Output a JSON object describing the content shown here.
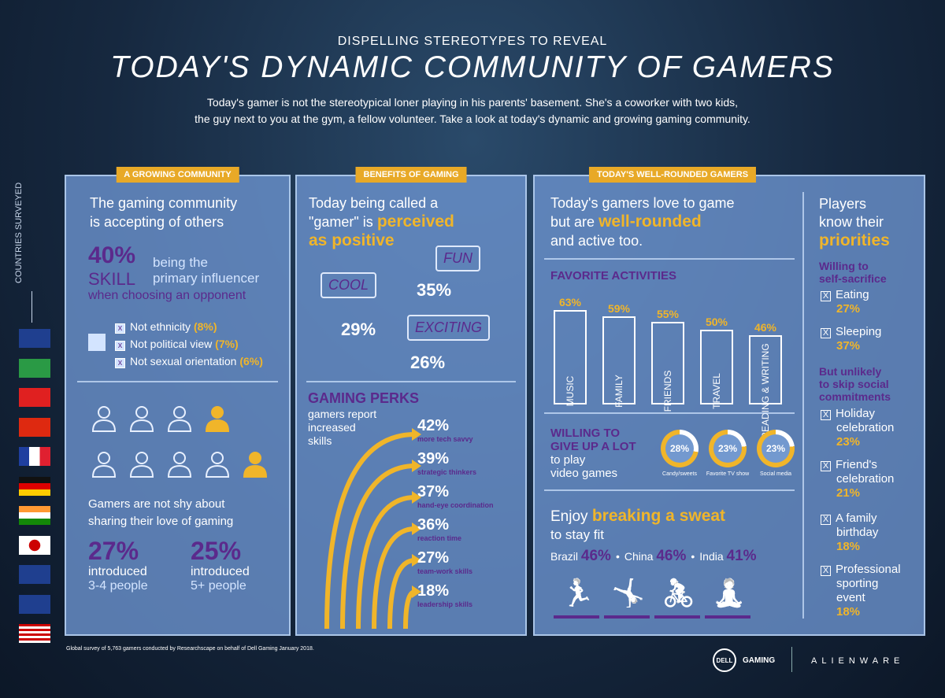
{
  "header": {
    "kicker": "DISPELLING STEREOTYPES TO REVEAL",
    "title": "TODAY'S DYNAMIC COMMUNITY OF GAMERS",
    "intro_1": "Today's gamer is not the stereotypical loner playing in his parents' basement. She's a coworker with two kids,",
    "intro_2": "the guy next to you at the gym, a fellow volunteer. Take a look at today's dynamic and growing gaming community."
  },
  "countries": {
    "label": "COUNTRIES SURVEYED",
    "flags": [
      "australia",
      "brazil",
      "canada",
      "china",
      "france",
      "germany",
      "india",
      "japan",
      "new-zealand",
      "united-kingdom",
      "united-states"
    ]
  },
  "growing": {
    "tag": "A GROWING COMMUNITY",
    "heading_1": "The gaming community",
    "heading_2": "is accepting of others",
    "stat": "40%",
    "skill": "SKILL",
    "being": "being the",
    "primary": "primary influencer",
    "choosing": "when choosing an opponent",
    "nots": [
      {
        "label": "Not ethnicity",
        "pct": "(8%)"
      },
      {
        "label": "Not political view",
        "pct": "(7%)"
      },
      {
        "label": "Not sexual orientation",
        "pct": "(6%)"
      }
    ],
    "sharing_1": "Gamers are not shy about",
    "sharing_2": "sharing their love of gaming",
    "intro_stats": [
      {
        "pct": "27%",
        "label": "introduced",
        "sub": "3-4 people"
      },
      {
        "pct": "25%",
        "label": "introduced",
        "sub": "5+ people"
      }
    ]
  },
  "benefits": {
    "tag": "BENEFITS OF GAMING",
    "heading_1": "Today being called a",
    "heading_2": "\"gamer\" is",
    "heading_hl_1": "perceived",
    "heading_hl_2": "as positive",
    "words": [
      {
        "word": "COOL",
        "pct": "29%"
      },
      {
        "word": "FUN",
        "pct": "35%"
      },
      {
        "word": "EXCITING",
        "pct": "26%"
      }
    ],
    "perks_title": "GAMING PERKS",
    "perks_sub_1": "gamers report",
    "perks_sub_2": "increased",
    "perks_sub_3": "skills",
    "perks": [
      {
        "pct": "42%",
        "label": "more tech savvy"
      },
      {
        "pct": "39%",
        "label": "strategic thinkers"
      },
      {
        "pct": "37%",
        "label": "hand-eye coordination"
      },
      {
        "pct": "36%",
        "label": "reaction time"
      },
      {
        "pct": "27%",
        "label": "team-work skills"
      },
      {
        "pct": "18%",
        "label": "leadership skills"
      }
    ]
  },
  "rounded": {
    "tag": "TODAY'S WELL-ROUNDED GAMERS",
    "heading_1": "Today's gamers love to game",
    "heading_2": "but are",
    "heading_hl": "well-rounded",
    "heading_3": "and active too.",
    "fav_title": "FAVORITE ACTIVITIES",
    "activities": [
      {
        "label": "MUSIC",
        "pct": "63%",
        "value": 63
      },
      {
        "label": "FAMILY",
        "pct": "59%",
        "value": 59
      },
      {
        "label": "FRIENDS",
        "pct": "55%",
        "value": 55
      },
      {
        "label": "TRAVEL",
        "pct": "50%",
        "value": 50
      },
      {
        "label": "READING & WRITING",
        "pct": "46%",
        "value": 46
      }
    ],
    "give_1": "WILLING TO",
    "give_2": "GIVE UP A LOT",
    "give_3": "to play",
    "give_4": "video games",
    "give_up": [
      {
        "pct": "28%",
        "value": 28,
        "label": "Candy/sweets"
      },
      {
        "pct": "23%",
        "value": 23,
        "label": "Favorite TV show"
      },
      {
        "pct": "23%",
        "value": 23,
        "label": "Social media"
      }
    ],
    "sweat_1": "Enjoy",
    "sweat_hl": "breaking a sweat",
    "sweat_2": "to stay fit",
    "fit": [
      {
        "country": "Brazil",
        "pct": "46%"
      },
      {
        "country": "China",
        "pct": "46%"
      },
      {
        "country": "India",
        "pct": "41%"
      }
    ],
    "fit_icons": [
      "running-icon",
      "situps-icon",
      "cycling-icon",
      "stretching-icon"
    ]
  },
  "priorities": {
    "heading_1": "Players",
    "heading_2": "know their",
    "heading_hl": "priorities",
    "sac_title_1": "Willing to",
    "sac_title_2": "self-sacrifice",
    "sacrifice": [
      {
        "label": "Eating",
        "pct": "27%"
      },
      {
        "label": "Sleeping",
        "pct": "37%"
      }
    ],
    "social_title_1": "But unlikely",
    "social_title_2": "to skip social",
    "social_title_3": "commitments",
    "social": [
      {
        "l1": "Holiday",
        "l2": "celebration",
        "pct": "23%"
      },
      {
        "l1": "Friend's",
        "l2": "celebration",
        "pct": "21%"
      },
      {
        "l1": "A family",
        "l2": "birthday",
        "pct": "18%"
      },
      {
        "l1": "Professional",
        "l2": "sporting",
        "l3": "event",
        "pct": "18%"
      }
    ]
  },
  "footer": {
    "source": "Global survey of 5,763 gamers conducted by Researchscape on behalf of Dell Gaming January 2018.",
    "dell": "DELL",
    "gaming": "GAMING",
    "alienware": "ALIENWARE"
  },
  "colors": {
    "accent": "#f0b52a",
    "purple": "#5b2a8c",
    "panel": "#6e96d2"
  }
}
